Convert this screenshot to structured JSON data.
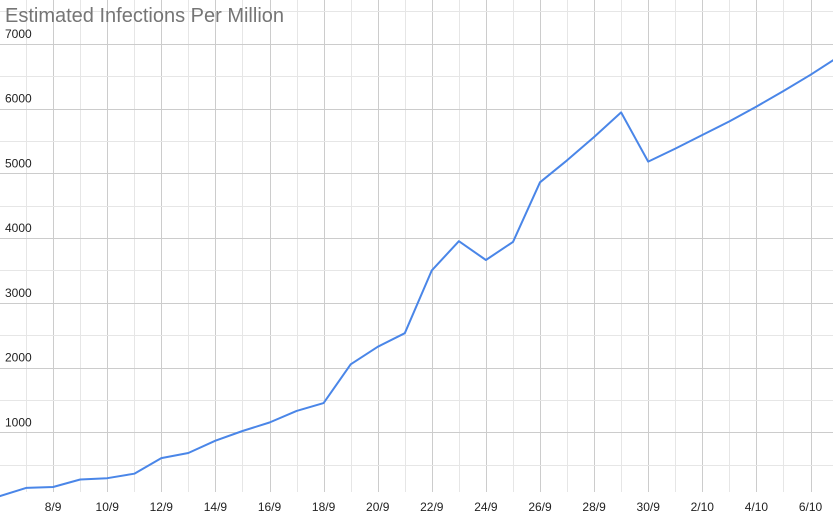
{
  "chart_data": {
    "type": "line",
    "title": "Estimated Infections Per Million",
    "xlabel": "",
    "ylabel": "",
    "x": [
      "6/9",
      "7/9",
      "8/9",
      "9/9",
      "10/9",
      "11/9",
      "12/9",
      "13/9",
      "14/9",
      "15/9",
      "16/9",
      "17/9",
      "18/9",
      "19/9",
      "20/9",
      "21/9",
      "22/9",
      "23/9",
      "24/9",
      "25/9",
      "26/9",
      "27/9",
      "28/9",
      "29/9",
      "30/9",
      "1/10",
      "2/10",
      "3/10",
      "4/10",
      "5/10",
      "6/10",
      "7/10"
    ],
    "x_tick_labels": [
      "8/9",
      "10/9",
      "12/9",
      "14/9",
      "16/9",
      "18/9",
      "20/9",
      "22/9",
      "24/9",
      "26/9",
      "28/9",
      "30/9",
      "2/10",
      "4/10",
      "6/10"
    ],
    "series": [
      {
        "color": "#4a86e8",
        "values": [
          10,
          140,
          155,
          270,
          290,
          360,
          600,
          680,
          870,
          1020,
          1150,
          1330,
          1450,
          2050,
          2320,
          2530,
          3500,
          3950,
          3660,
          3940,
          4860,
          5200,
          5560,
          5940,
          5180,
          5380,
          5590,
          5800,
          6030,
          6270,
          6520,
          6790
        ]
      }
    ],
    "y_ticks": [
      1000,
      2000,
      3000,
      4000,
      5000,
      6000,
      7000
    ],
    "ylim": [
      0,
      7000
    ],
    "grid": true,
    "legend": "none"
  }
}
